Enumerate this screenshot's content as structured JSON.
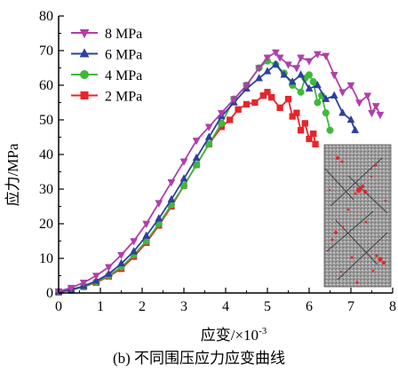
{
  "chart_data": {
    "type": "line",
    "xlabel": "应变/×10",
    "xlabel_exp": "-3",
    "ylabel": "应力/MPa",
    "caption": "(b) 不同围压应力应变曲线",
    "xlim": [
      0,
      8
    ],
    "ylim": [
      0,
      80
    ],
    "xticks": [
      "0",
      "1",
      "2",
      "3",
      "4",
      "5",
      "6",
      "7",
      "8"
    ],
    "yticks": [
      "0",
      "10",
      "20",
      "30",
      "40",
      "50",
      "60",
      "70",
      "80"
    ],
    "legend_position": "top-left",
    "inset": "specimen-fracture-image",
    "series": [
      {
        "name": "8 MPa",
        "color": "#b03fa8",
        "marker": "triangle-down",
        "x": [
          0,
          0.3,
          0.6,
          0.9,
          1.2,
          1.5,
          1.8,
          2.1,
          2.4,
          2.7,
          3.0,
          3.3,
          3.6,
          3.9,
          4.2,
          4.5,
          4.8,
          5.0,
          5.2,
          5.3,
          5.5,
          5.7,
          5.8,
          6.0,
          6.2,
          6.4,
          6.6,
          6.8,
          7.0,
          7.2,
          7.4,
          7.5,
          7.6,
          7.7
        ],
        "y": [
          0.5,
          1.5,
          3,
          5,
          7.5,
          11,
          15,
          20,
          26,
          32,
          38,
          44,
          48,
          52,
          56,
          60,
          65,
          68,
          69.5,
          68,
          66,
          65,
          68,
          67,
          69,
          68.5,
          63,
          58,
          60,
          55,
          57,
          52,
          54,
          51.5
        ]
      },
      {
        "name": "6 MPa",
        "color": "#2e3f9e",
        "marker": "triangle-up",
        "x": [
          0,
          0.3,
          0.6,
          0.9,
          1.2,
          1.5,
          1.8,
          2.1,
          2.4,
          2.7,
          3.0,
          3.3,
          3.6,
          3.9,
          4.2,
          4.5,
          4.8,
          5.0,
          5.2,
          5.4,
          5.6,
          5.8,
          6.0,
          6.2,
          6.4,
          6.6,
          6.8,
          7.0,
          7.1
        ],
        "y": [
          0.3,
          1,
          2,
          3.5,
          5.5,
          8.5,
          12,
          16.5,
          21.5,
          27,
          33,
          39,
          45,
          51,
          55,
          59,
          62,
          64,
          66,
          63,
          61,
          63,
          59,
          60,
          56,
          57,
          52,
          50,
          47
        ]
      },
      {
        "name": "4 MPa",
        "color": "#3fb83a",
        "marker": "circle",
        "x": [
          0,
          0.3,
          0.6,
          0.9,
          1.2,
          1.5,
          1.8,
          2.1,
          2.4,
          2.7,
          3.0,
          3.3,
          3.6,
          3.9,
          4.2,
          4.5,
          4.8,
          5.0,
          5.2,
          5.4,
          5.6,
          5.8,
          5.9,
          6.0,
          6.1,
          6.2,
          6.3,
          6.4,
          6.5
        ],
        "y": [
          0.2,
          0.8,
          1.8,
          3.2,
          5,
          7.5,
          11,
          15,
          20,
          25.5,
          31,
          37,
          43,
          49,
          56,
          60,
          65,
          67,
          66,
          63.5,
          60,
          58,
          62,
          63,
          61,
          55,
          57,
          52,
          47
        ]
      },
      {
        "name": "2 MPa",
        "color": "#e8242b",
        "marker": "square",
        "x": [
          0,
          0.3,
          0.6,
          0.9,
          1.2,
          1.5,
          1.8,
          2.1,
          2.4,
          2.7,
          3.0,
          3.3,
          3.6,
          3.9,
          4.1,
          4.3,
          4.5,
          4.7,
          4.9,
          5.0,
          5.1,
          5.3,
          5.5,
          5.6,
          5.7,
          5.8,
          5.9,
          6.0,
          6.1,
          6.15
        ],
        "y": [
          0.2,
          0.8,
          1.8,
          3,
          4.8,
          7,
          10.5,
          14.5,
          19.5,
          25,
          31,
          37,
          43,
          48,
          50,
          53,
          54.5,
          55,
          57,
          58,
          56.5,
          53.5,
          56,
          51,
          52,
          47,
          49,
          44.5,
          46,
          43
        ]
      }
    ]
  }
}
